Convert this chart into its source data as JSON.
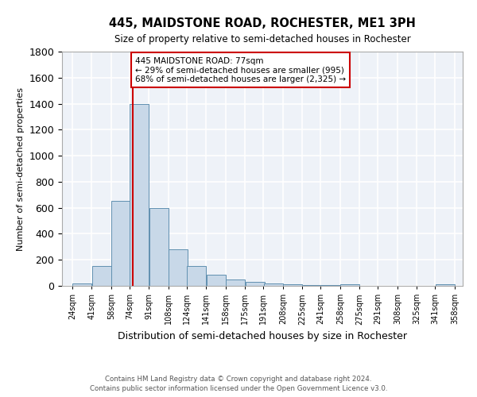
{
  "title_line1": "445, MAIDSTONE ROAD, ROCHESTER, ME1 3PH",
  "title_line2": "Size of property relative to semi-detached houses in Rochester",
  "xlabel": "Distribution of semi-detached houses by size in Rochester",
  "ylabel": "Number of semi-detached properties",
  "bar_color": "#c8d8e8",
  "bar_edge_color": "#6090b0",
  "background_color": "#eef2f8",
  "grid_color": "#ffffff",
  "annotation_text": "445 MAIDSTONE ROAD: 77sqm\n← 29% of semi-detached houses are smaller (995)\n68% of semi-detached houses are larger (2,325) →",
  "property_line_x": 77,
  "property_line_color": "#cc0000",
  "annotation_box_color": "#cc0000",
  "bins_left": [
    24,
    41,
    58,
    74,
    91,
    108,
    124,
    141,
    158,
    175,
    191,
    208,
    225,
    241,
    258,
    275,
    291,
    308,
    325,
    341
  ],
  "bin_width": 17,
  "values": [
    20,
    150,
    650,
    1400,
    600,
    280,
    155,
    88,
    48,
    30,
    18,
    12,
    8,
    5,
    10,
    3,
    2,
    2,
    2,
    12
  ],
  "xlim_left": 15,
  "xlim_right": 365,
  "ylim": [
    0,
    1800
  ],
  "yticks": [
    0,
    200,
    400,
    600,
    800,
    1000,
    1200,
    1400,
    1600,
    1800
  ],
  "tick_labels": [
    "24sqm",
    "41sqm",
    "58sqm",
    "74sqm",
    "91sqm",
    "108sqm",
    "124sqm",
    "141sqm",
    "158sqm",
    "175sqm",
    "191sqm",
    "208sqm",
    "225sqm",
    "241sqm",
    "258sqm",
    "275sqm",
    "291sqm",
    "308sqm",
    "325sqm",
    "341sqm",
    "358sqm"
  ],
  "footnote1": "Contains HM Land Registry data © Crown copyright and database right 2024.",
  "footnote2": "Contains public sector information licensed under the Open Government Licence v3.0."
}
